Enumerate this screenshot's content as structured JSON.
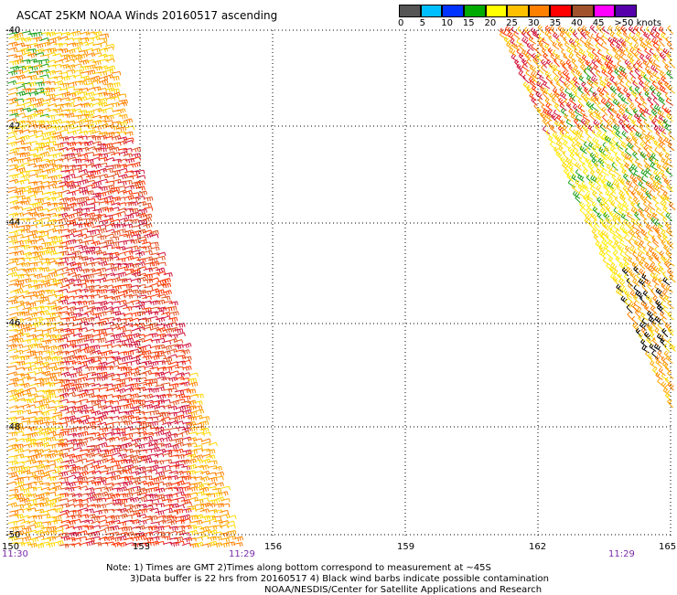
{
  "title": "ASCAT 25KM NOAA Winds 20160517 ascending",
  "colorbar": {
    "labels": [
      "0",
      "5",
      "10",
      "15",
      "20",
      "25",
      "30",
      "35",
      "40",
      "45",
      ">50 knots"
    ],
    "colors": [
      "#000000",
      "#00bfff",
      "#0033ff",
      "#00aa00",
      "#ffff00",
      "#ffc000",
      "#ff8000",
      "#ff0000",
      "#a0522d",
      "#ff00ff",
      "#5500aa"
    ]
  },
  "latitudes": [
    "-40",
    "-42",
    "-44",
    "-46",
    "-48",
    "-50"
  ],
  "longitudes": [
    "150",
    "153",
    "156",
    "159",
    "162",
    "165"
  ],
  "times": [
    "11:30",
    "11:29",
    "11:29"
  ],
  "notes": {
    "line1": "Note: 1) Times are GMT 2)Times along bottom correspond to measurement at ~45S",
    "line2": "3)Data buffer is 22 hrs from 20160517 4) Black wind barbs indicate possible contamination",
    "line3": "NOAA/NESDIS/Center for Satellite Applications and Research"
  },
  "swaths": {
    "left": {
      "colors": [
        "#ffd700",
        "#ffa500",
        "#ff7f00",
        "#e05020",
        "#d2143c",
        "#ff3300",
        "#ffcc00"
      ]
    },
    "right": {
      "colors": [
        "#ffd700",
        "#ffa500",
        "#ff7f00",
        "#d2143c",
        "#ff3300",
        "#1aa01a",
        "#000000",
        "#ffee00"
      ]
    }
  }
}
